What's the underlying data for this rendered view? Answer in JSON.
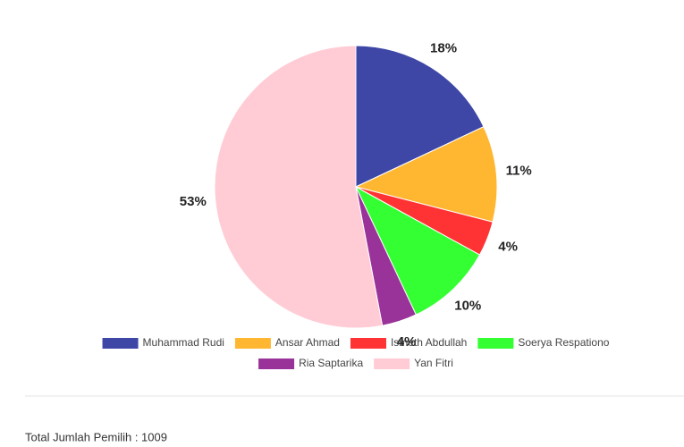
{
  "chart_data": {
    "type": "pie",
    "categories": [
      "Muhammad Rudi",
      "Ansar Ahmad",
      "Ismeth Abdullah",
      "Soerya Respationo",
      "Ria Saptarika",
      "Yan Fitri"
    ],
    "values": [
      18,
      11,
      4,
      10,
      4,
      53
    ],
    "value_labels": [
      "18%",
      "11%",
      "4%",
      "10%",
      "4%",
      "53%"
    ],
    "colors": [
      "#3e47a6",
      "#ffb732",
      "#ff3333",
      "#33ff33",
      "#993399",
      "#ffccd5"
    ],
    "legend": "bottom"
  },
  "footer": {
    "text": "Total Jumlah Pemilih : 1009"
  }
}
